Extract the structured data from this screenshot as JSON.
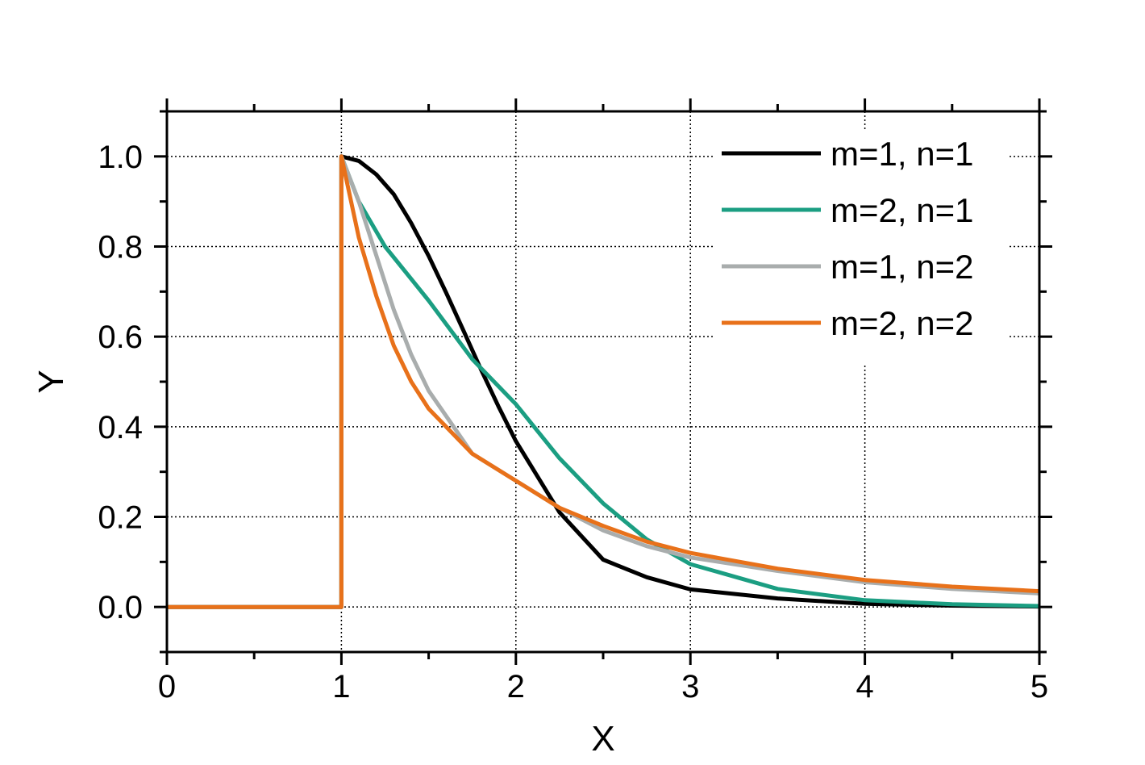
{
  "chart_data": {
    "type": "line",
    "title": "",
    "xlabel": "X",
    "ylabel": "Y",
    "xlim": [
      0,
      5
    ],
    "ylim": [
      -0.1,
      1.1
    ],
    "x_ticks": [
      0,
      1,
      2,
      3,
      4,
      5
    ],
    "x_tick_labels": [
      "0",
      "1",
      "2",
      "3",
      "4",
      "5"
    ],
    "y_ticks": [
      0.0,
      0.2,
      0.4,
      0.6,
      0.8,
      1.0
    ],
    "y_tick_labels": [
      "0.0",
      "0.2",
      "0.4",
      "0.6",
      "0.8",
      "1.0"
    ],
    "grid": true,
    "legend_position": "top-right",
    "series": [
      {
        "name": "m=1, n=1",
        "color": "#000000",
        "x": [
          0,
          1,
          1,
          1.1,
          1.2,
          1.3,
          1.4,
          1.5,
          1.6,
          1.7,
          1.8,
          1.9,
          2.0,
          2.25,
          2.5,
          2.75,
          3.0,
          3.5,
          4.0,
          4.5,
          5.0
        ],
        "y": [
          0,
          0,
          1.0,
          0.99,
          0.96,
          0.916,
          0.852,
          0.779,
          0.698,
          0.613,
          0.527,
          0.445,
          0.368,
          0.21,
          0.105,
          0.066,
          0.039,
          0.019,
          0.007,
          0.003,
          0.001
        ]
      },
      {
        "name": "m=2, n=1",
        "color": "#1b9e82",
        "x": [
          0,
          1,
          1,
          1.1,
          1.25,
          1.5,
          1.75,
          2.0,
          2.25,
          2.5,
          2.75,
          3.0,
          3.5,
          4.0,
          4.5,
          5.0
        ],
        "y": [
          0,
          0,
          1.0,
          0.9,
          0.8,
          0.68,
          0.55,
          0.45,
          0.33,
          0.23,
          0.15,
          0.095,
          0.04,
          0.015,
          0.006,
          0.002
        ]
      },
      {
        "name": "m=1, n=2",
        "color": "#a9adad",
        "x": [
          0,
          1,
          1,
          1.1,
          1.2,
          1.3,
          1.4,
          1.5,
          1.75,
          2.0,
          2.25,
          2.5,
          2.75,
          3.0,
          3.5,
          4.0,
          4.5,
          5.0
        ],
        "y": [
          0,
          0,
          1.0,
          0.9,
          0.78,
          0.66,
          0.56,
          0.48,
          0.34,
          0.28,
          0.22,
          0.17,
          0.135,
          0.11,
          0.08,
          0.055,
          0.04,
          0.03
        ]
      },
      {
        "name": "m=2, n=2",
        "color": "#e8711a",
        "x": [
          0,
          1,
          1,
          1.1,
          1.2,
          1.3,
          1.4,
          1.5,
          1.75,
          2.0,
          2.25,
          2.5,
          2.75,
          3.0,
          3.5,
          4.0,
          4.5,
          5.0
        ],
        "y": [
          0,
          0,
          1.0,
          0.82,
          0.69,
          0.58,
          0.5,
          0.44,
          0.34,
          0.28,
          0.22,
          0.18,
          0.145,
          0.12,
          0.085,
          0.06,
          0.045,
          0.035
        ]
      }
    ]
  }
}
